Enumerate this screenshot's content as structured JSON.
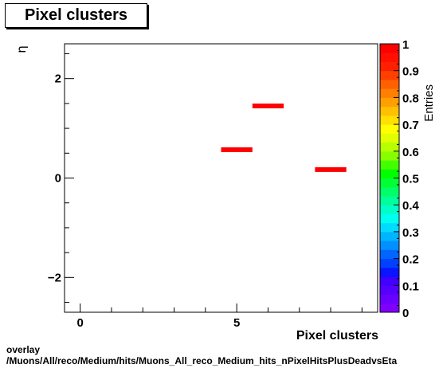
{
  "title": "Pixel clusters",
  "footer": {
    "line1": "overlay",
    "line2": "/Muons/All/reco/Medium/hits/Muons_All_reco_Medium_hits_nPixelHitsPlusDeadvsEta"
  },
  "chart_data": {
    "type": "heatmap",
    "title": "Pixel clusters",
    "xlabel": "Pixel clusters",
    "ylabel": "η",
    "zlabel": "Entries",
    "xlim": [
      -0.5,
      9.5
    ],
    "ylim": [
      -2.7,
      2.7
    ],
    "zlim": [
      0,
      1
    ],
    "x_ticks": [
      0,
      5
    ],
    "y_ticks": [
      -2,
      0,
      2
    ],
    "z_ticks": [
      0,
      0.1,
      0.2,
      0.3,
      0.4,
      0.5,
      0.6,
      0.7,
      0.8,
      0.9,
      1
    ],
    "z_tick_labels": [
      "0",
      "0.1",
      "0.2",
      "0.3",
      "0.4",
      "0.5",
      "0.6",
      "0.7",
      "0.8",
      "0.9",
      "1"
    ],
    "cells": [
      {
        "x0": 4.5,
        "x1": 5.5,
        "y": 0.57,
        "value": 1
      },
      {
        "x0": 5.5,
        "x1": 6.5,
        "y": 1.45,
        "value": 1
      },
      {
        "x0": 7.5,
        "x1": 8.5,
        "y": 0.17,
        "value": 1
      }
    ],
    "palette": [
      "#7f00ff",
      "#6a00ff",
      "#5500ff",
      "#3f00ff",
      "#0a14ff",
      "#0040ff",
      "#0066ff",
      "#0090ff",
      "#00b4ff",
      "#00dcff",
      "#00fff0",
      "#00ffc8",
      "#00ff9a",
      "#00ff66",
      "#00ff33",
      "#00ff00",
      "#44ff00",
      "#88ff00",
      "#b8ff00",
      "#e0ff00",
      "#ffff00",
      "#ffe000",
      "#ffc000",
      "#ffa000",
      "#ff8000",
      "#ff6000",
      "#ff4000",
      "#ff2000",
      "#ff1000",
      "#ff0000"
    ]
  }
}
